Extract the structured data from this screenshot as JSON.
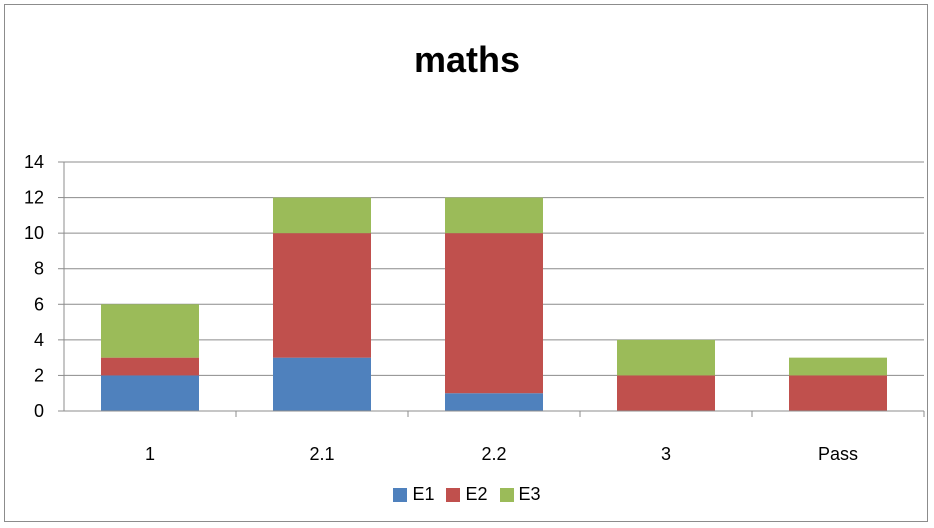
{
  "chart_data": {
    "type": "bar",
    "stacked": true,
    "title": "maths",
    "xlabel": "",
    "ylabel": "",
    "categories": [
      "1",
      "2.1",
      "2.2",
      "3",
      "Pass"
    ],
    "series": [
      {
        "name": "E1",
        "color": "#4f81bd",
        "values": [
          2,
          3,
          1,
          0,
          0
        ]
      },
      {
        "name": "E2",
        "color": "#c0504d",
        "values": [
          1,
          7,
          9,
          2,
          2
        ]
      },
      {
        "name": "E3",
        "color": "#9bbb59",
        "values": [
          3,
          2,
          2,
          2,
          1
        ]
      }
    ],
    "ylim": [
      0,
      14
    ],
    "yticks": [
      "0",
      "2",
      "4",
      "6",
      "8",
      "10",
      "12",
      "14"
    ],
    "grid": true,
    "legend_position": "bottom"
  }
}
